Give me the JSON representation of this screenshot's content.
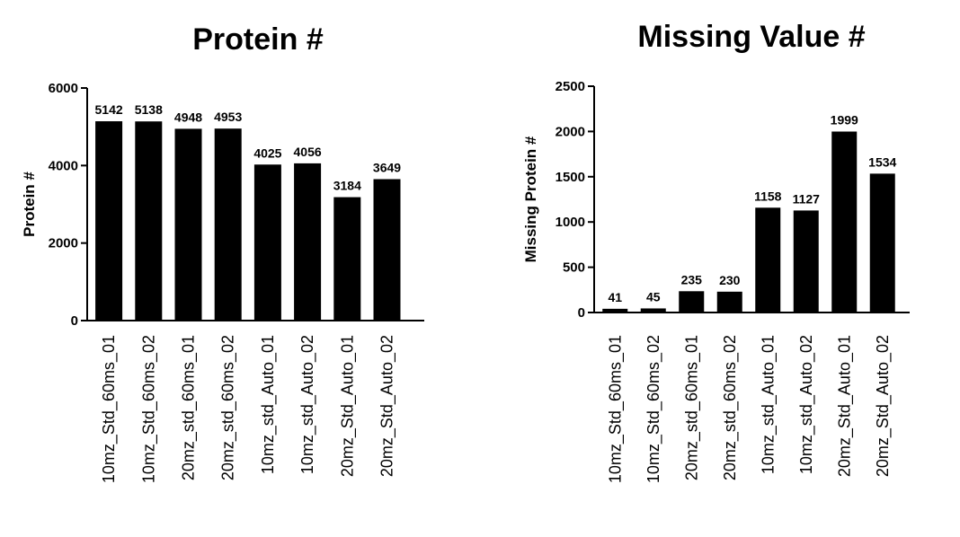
{
  "chart_data": [
    {
      "type": "bar",
      "title": "Protein #",
      "xlabel": "",
      "ylabel": "Protein #",
      "ylim": [
        0,
        6000
      ],
      "yticks": [
        0,
        2000,
        4000,
        6000
      ],
      "categories": [
        "10mz_Std_60ms_01",
        "10mz_Std_60ms_02",
        "20mz_std_60ms_01",
        "20mz_std_60ms_02",
        "10mz_std_Auto_01",
        "10mz_std_Auto_02",
        "20mz_Std_Auto_01",
        "20mz_Std_Auto_02"
      ],
      "values": [
        5142,
        5138,
        4948,
        4953,
        4025,
        4056,
        3184,
        3649
      ],
      "bar_color": "#000000",
      "grid": false
    },
    {
      "type": "bar",
      "title": "Missing Value #",
      "xlabel": "",
      "ylabel": "Missing Protein #",
      "ylim": [
        0,
        2500
      ],
      "yticks": [
        0,
        500,
        1000,
        1500,
        2000,
        2500
      ],
      "categories": [
        "10mz_Std_60ms_01",
        "10mz_Std_60ms_02",
        "20mz_std_60ms_01",
        "20mz_std_60ms_02",
        "10mz_std_Auto_01",
        "10mz_std_Auto_02",
        "20mz_Std_Auto_01",
        "20mz_Std_Auto_02"
      ],
      "values": [
        41,
        45,
        235,
        230,
        1158,
        1127,
        1999,
        1534
      ],
      "bar_color": "#000000",
      "grid": false
    }
  ]
}
